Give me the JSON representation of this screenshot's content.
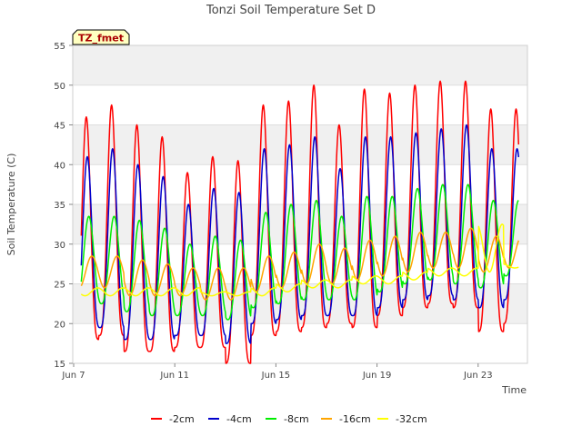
{
  "chart_data": {
    "type": "line",
    "title": "Tonzi Soil Temperature Set D",
    "xlabel": "Time",
    "ylabel": "Soil Temperature (C)",
    "badge": "TZ_fmet",
    "xlim": [
      "2000-06-07",
      "2000-06-25"
    ],
    "x_ticks": [
      "Jun 7",
      "Jun 11",
      "Jun 15",
      "Jun 19",
      "Jun 23"
    ],
    "x_tick_days": [
      0,
      4,
      8,
      12,
      16
    ],
    "ylim": [
      15,
      55
    ],
    "y_ticks": [
      15,
      20,
      25,
      30,
      35,
      40,
      45,
      50,
      55
    ],
    "grid": true,
    "legend_position": "bottom-center",
    "days": [
      "Jun 7",
      "Jun 8",
      "Jun 9",
      "Jun 10",
      "Jun 11",
      "Jun 12",
      "Jun 13",
      "Jun 14",
      "Jun 15",
      "Jun 16",
      "Jun 17",
      "Jun 18",
      "Jun 19",
      "Jun 20",
      "Jun 21",
      "Jun 22",
      "Jun 23",
      "Jun 24"
    ],
    "series": [
      {
        "name": "-2cm",
        "color": "#ff0000",
        "daily_min": [
          18,
          18.5,
          16.5,
          16.5,
          17,
          17,
          15,
          18.5,
          19,
          19.5,
          20,
          19.5,
          21,
          22,
          22.5,
          22,
          19,
          20
        ],
        "daily_max": [
          46,
          47.5,
          45,
          43.5,
          39,
          41,
          40.5,
          47.5,
          48,
          50,
          45,
          49.5,
          49,
          50,
          50.5,
          50.5,
          47,
          47
        ]
      },
      {
        "name": "-4cm",
        "color": "#0000cc",
        "daily_min": [
          19.5,
          19.5,
          18,
          18,
          18.5,
          18.5,
          17.5,
          20,
          20.5,
          21,
          21,
          21,
          22,
          23,
          23.5,
          23,
          22,
          23
        ],
        "daily_max": [
          41,
          42,
          40,
          38.5,
          35,
          37,
          36.5,
          42,
          42.5,
          43.5,
          39.5,
          43.5,
          43.5,
          44,
          44.5,
          45,
          42,
          42
        ]
      },
      {
        "name": "-8cm",
        "color": "#00ee00",
        "daily_min": [
          22.5,
          22.5,
          21.5,
          21,
          21,
          21,
          20.5,
          22,
          22.5,
          23,
          23,
          23,
          24,
          25,
          25.5,
          25,
          24.5,
          26
        ],
        "daily_max": [
          33.5,
          33.5,
          33,
          32,
          30,
          31,
          30.5,
          34,
          35,
          35.5,
          33.5,
          36,
          36,
          37,
          37.5,
          37.5,
          35.5,
          35.5
        ]
      },
      {
        "name": "-16cm",
        "color": "#ffa500",
        "daily_min": [
          24.5,
          24.5,
          23.5,
          23.5,
          23.5,
          23,
          23,
          24,
          24.5,
          25,
          25,
          25.5,
          26,
          26.5,
          27,
          27,
          26.5,
          27
        ],
        "daily_max": [
          28.5,
          28.5,
          28,
          27.5,
          27,
          27,
          27,
          28.5,
          29,
          30,
          29.5,
          30.5,
          31,
          31.5,
          31.5,
          32,
          31,
          31
        ]
      },
      {
        "name": "-32cm",
        "color": "#ffff00",
        "daily_min": [
          23.5,
          23.5,
          23.5,
          23.5,
          23.5,
          23.5,
          23.5,
          23.5,
          24,
          24.5,
          24.5,
          25,
          25,
          25.5,
          26,
          26,
          26.5,
          27
        ],
        "daily_max": [
          24.5,
          24.5,
          24.5,
          24.5,
          24.5,
          24,
          24,
          24.5,
          25,
          25.5,
          25.5,
          26,
          26,
          26.5,
          27,
          27,
          32.5,
          27.5
        ]
      }
    ]
  }
}
